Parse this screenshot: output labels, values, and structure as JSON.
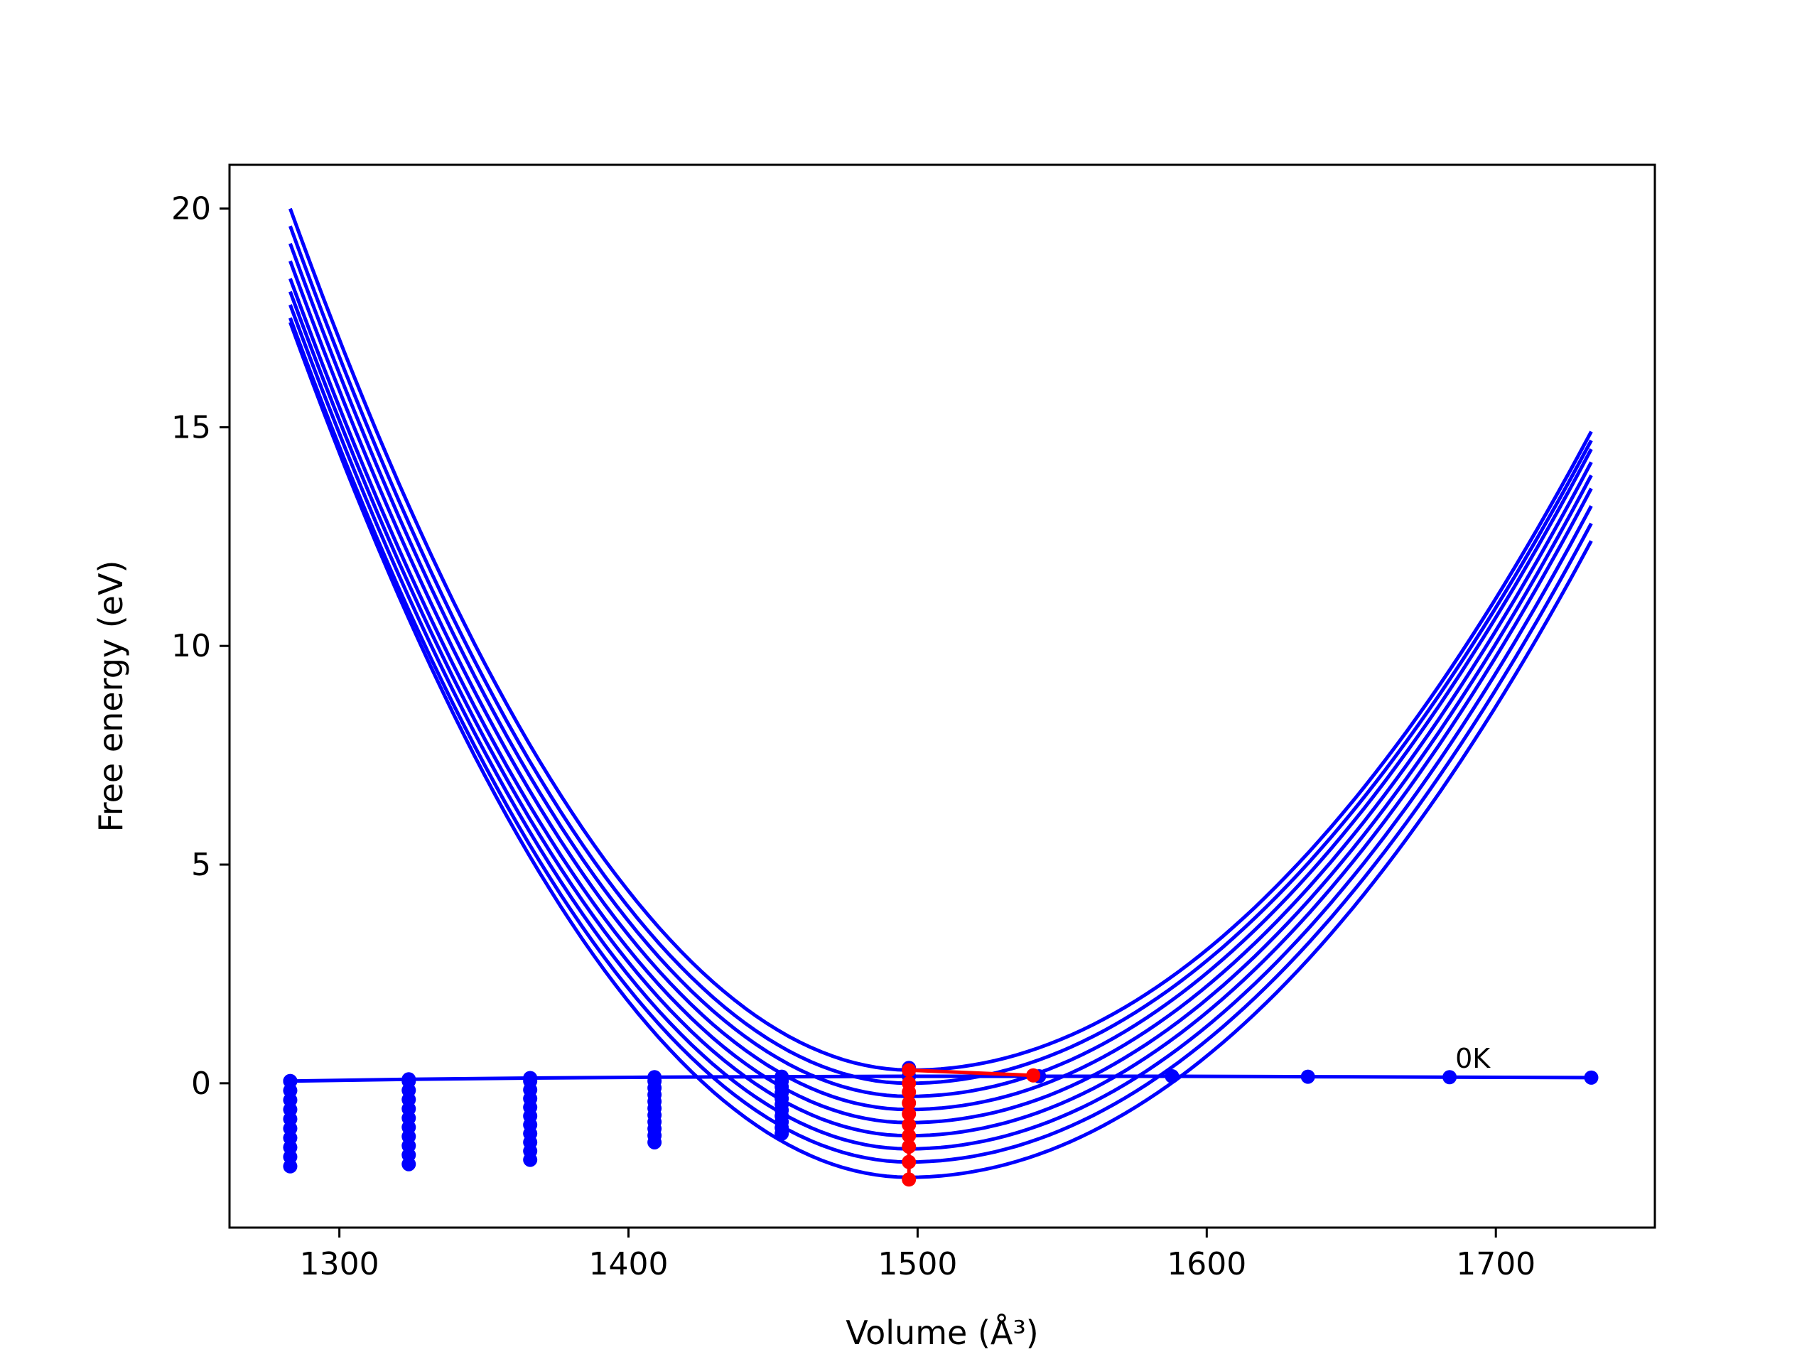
{
  "chart_data": {
    "type": "line",
    "title": "",
    "xlabel": "Volume (Å³)",
    "ylabel": "Free energy (eV)",
    "xlim": [
      1262,
      1755
    ],
    "ylim": [
      -3.3,
      21.0
    ],
    "xticks": [
      1300,
      1400,
      1500,
      1600,
      1700
    ],
    "yticks": [
      0,
      5,
      10,
      15,
      20
    ],
    "grid": false,
    "legend": "none",
    "colors": {
      "curves": "#0000ff",
      "min_path": "#ff0000",
      "axes": "#000000"
    },
    "curve_model": "quadratic",
    "curve_x_range": [
      1283,
      1733
    ],
    "curves": [
      {
        "x_left": 1283,
        "y_left": 20.0,
        "x_min": 1498,
        "y_min": 0.3,
        "x_right": 1733,
        "y_right": 14.9
      },
      {
        "x_left": 1283,
        "y_left": 19.6,
        "x_min": 1497,
        "y_min": 0.0,
        "x_right": 1733,
        "y_right": 14.7
      },
      {
        "x_left": 1283,
        "y_left": 19.2,
        "x_min": 1497,
        "y_min": -0.3,
        "x_right": 1733,
        "y_right": 14.5
      },
      {
        "x_left": 1283,
        "y_left": 18.8,
        "x_min": 1497,
        "y_min": -0.6,
        "x_right": 1733,
        "y_right": 14.2
      },
      {
        "x_left": 1283,
        "y_left": 18.4,
        "x_min": 1497,
        "y_min": -0.9,
        "x_right": 1733,
        "y_right": 13.9
      },
      {
        "x_left": 1283,
        "y_left": 18.1,
        "x_min": 1497,
        "y_min": -1.2,
        "x_right": 1733,
        "y_right": 13.6
      },
      {
        "x_left": 1283,
        "y_left": 17.8,
        "x_min": 1497,
        "y_min": -1.5,
        "x_right": 1733,
        "y_right": 13.2
      },
      {
        "x_left": 1283,
        "y_left": 17.5,
        "x_min": 1497,
        "y_min": -1.8,
        "x_right": 1733,
        "y_right": 12.8
      },
      {
        "x_left": 1283,
        "y_left": 17.4,
        "x_min": 1497,
        "y_min": -2.15,
        "x_right": 1733,
        "y_right": 12.4
      }
    ],
    "zero_kelvin_curve": {
      "label": "0K",
      "x": [
        1283,
        1324,
        1366,
        1409,
        1453,
        1497,
        1542,
        1588,
        1635,
        1684,
        1733
      ],
      "y": [
        0.05,
        0.09,
        0.12,
        0.14,
        0.15,
        0.16,
        0.16,
        0.16,
        0.15,
        0.14,
        0.13
      ]
    },
    "sample_points": {
      "x": [
        1283,
        1324,
        1366,
        1409,
        1453
      ],
      "y_top": [
        0.05,
        0.05,
        0.05,
        0.05,
        0.05
      ],
      "y_bottom": [
        -1.9,
        -1.85,
        -1.75,
        -1.35,
        -1.15
      ],
      "count": 10
    },
    "min_path": {
      "x": [
        1497,
        1497,
        1497,
        1497,
        1497,
        1497,
        1497,
        1497,
        1497,
        1497,
        1540
      ],
      "y": [
        -2.2,
        -1.8,
        -1.45,
        -1.2,
        -0.95,
        -0.7,
        -0.45,
        -0.2,
        0.0,
        0.3,
        0.18
      ]
    },
    "min_path_top_marker": {
      "x": 1497,
      "y": 0.35
    }
  }
}
